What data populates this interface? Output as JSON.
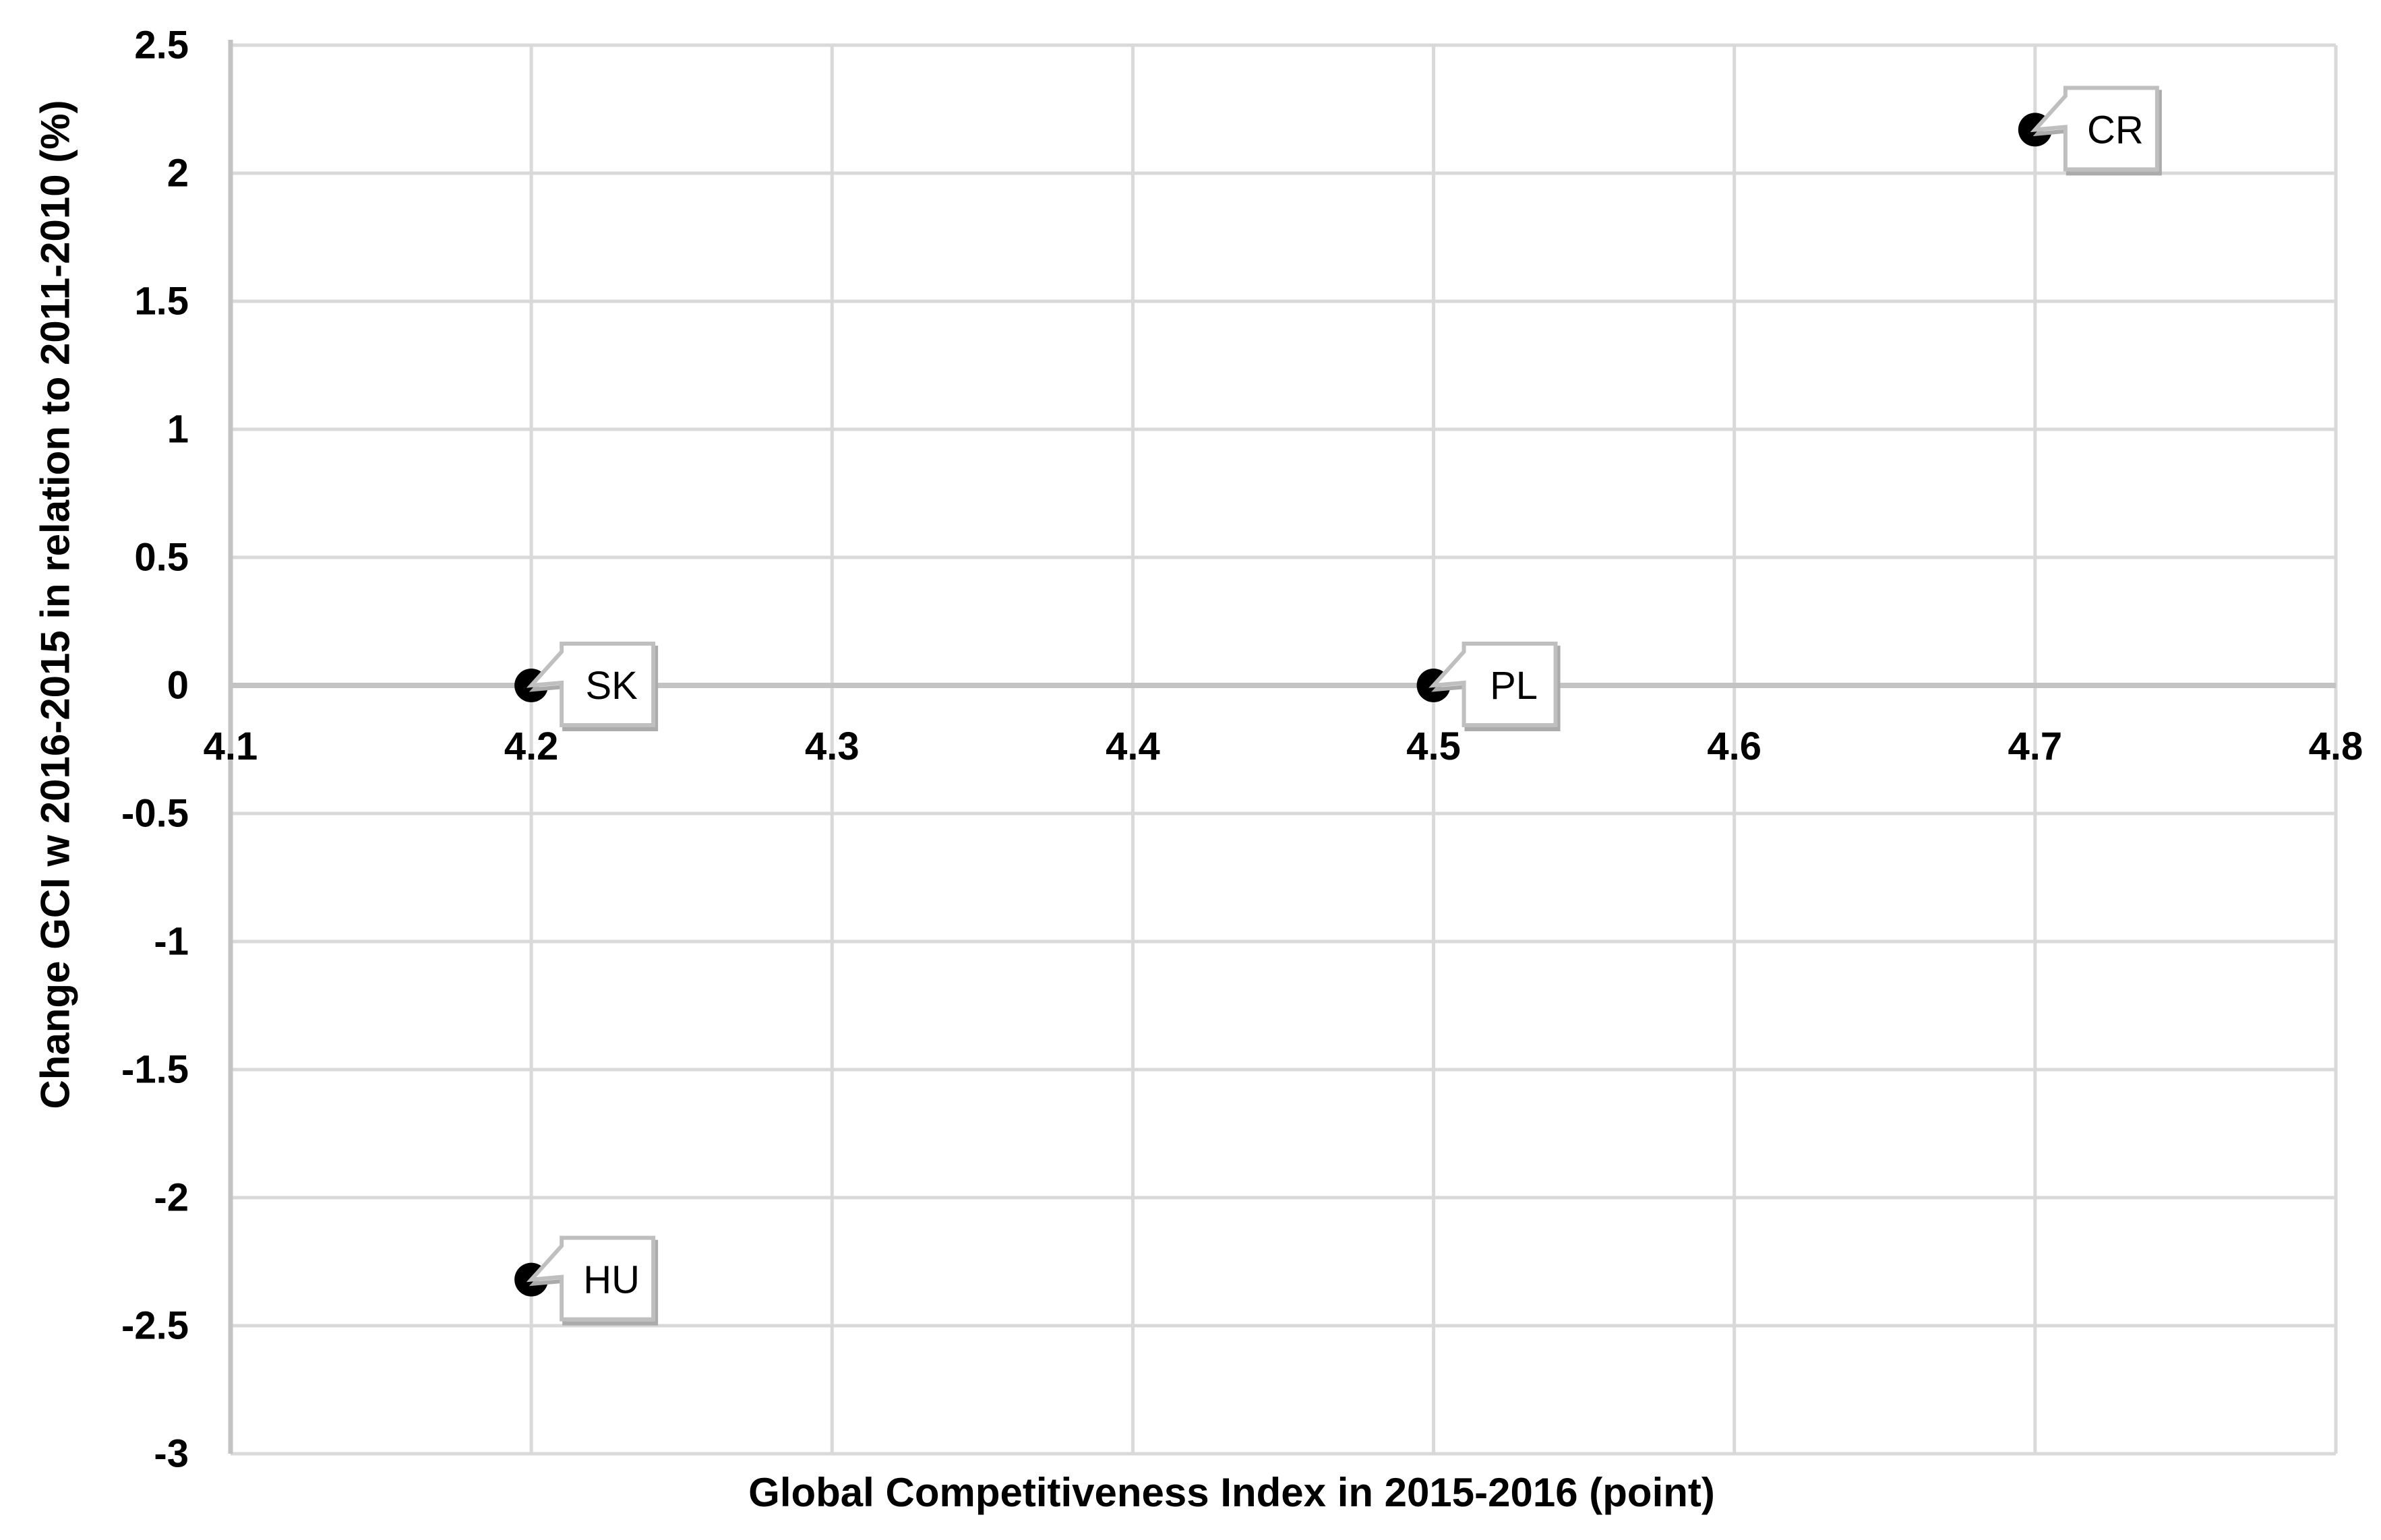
{
  "chart_data": {
    "type": "scatter",
    "title": "",
    "xlabel": "Global Competitiveness Index in 2015-2016 (point)",
    "ylabel": "Change GCI w 2016-2015  in relation to 2011-2010 (%)",
    "xlim": [
      4.1,
      4.8
    ],
    "ylim": [
      -3,
      2.5
    ],
    "grid": true,
    "legend": "none",
    "x_ticks": [
      {
        "value": 4.1,
        "label": "4.1"
      },
      {
        "value": 4.2,
        "label": "4.2"
      },
      {
        "value": 4.3,
        "label": "4.3"
      },
      {
        "value": 4.4,
        "label": "4.4"
      },
      {
        "value": 4.5,
        "label": "4.5"
      },
      {
        "value": 4.6,
        "label": "4.6"
      },
      {
        "value": 4.7,
        "label": "4.7"
      },
      {
        "value": 4.8,
        "label": "4.8"
      }
    ],
    "y_ticks": [
      {
        "value": 2.5,
        "label": "2.5"
      },
      {
        "value": 2,
        "label": "2"
      },
      {
        "value": 1.5,
        "label": "1.5"
      },
      {
        "value": 1,
        "label": "1"
      },
      {
        "value": 0.5,
        "label": "0.5"
      },
      {
        "value": 0,
        "label": "0"
      },
      {
        "value": -0.5,
        "label": "-0.5"
      },
      {
        "value": -1,
        "label": "-1"
      },
      {
        "value": -1.5,
        "label": "-1.5"
      },
      {
        "value": -2,
        "label": "-2"
      },
      {
        "value": -2.5,
        "label": "-2.5"
      },
      {
        "value": -3,
        "label": "-3"
      }
    ],
    "points": [
      {
        "label": "CR",
        "x": 4.7,
        "y": 2.17
      },
      {
        "label": "SK",
        "x": 4.2,
        "y": 0
      },
      {
        "label": "PL",
        "x": 4.5,
        "y": 0
      },
      {
        "label": "HU",
        "x": 4.2,
        "y": -2.32
      }
    ],
    "colors": {
      "gridline": "#D9D9D9",
      "axis_line": "#C3C3C3",
      "marker": "#000000",
      "callout_border": "#BFBFBF",
      "callout_shadow": "#ABABAB",
      "callout_fill": "#FFFFFF",
      "text": "#000000"
    }
  }
}
